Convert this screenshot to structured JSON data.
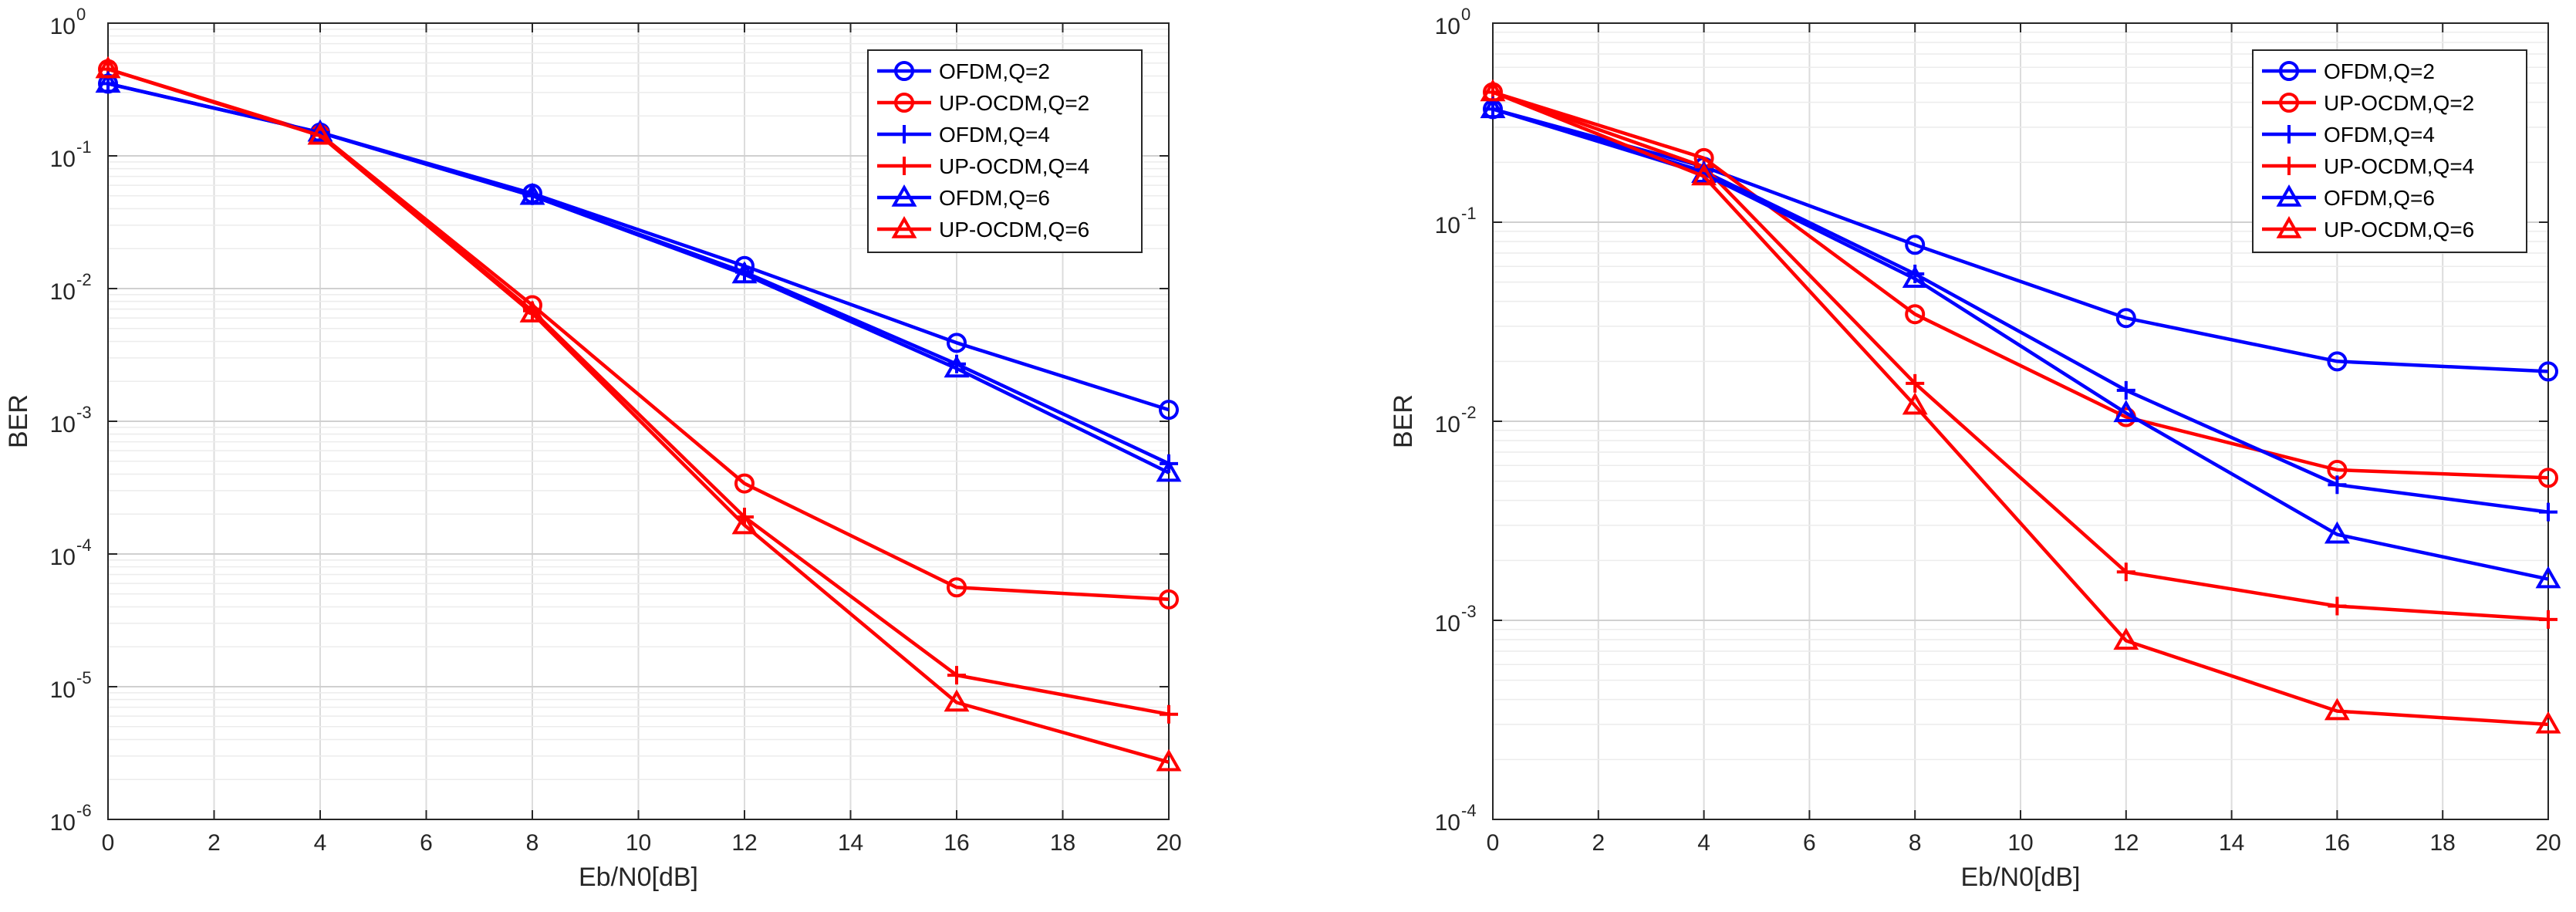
{
  "colors": {
    "ofdm": "#0000ff",
    "ocdm": "#ff0000"
  },
  "chart_data": [
    {
      "type": "line",
      "xscale": "linear",
      "yscale": "log",
      "xlabel": "Eb/N0[dB]",
      "ylabel": "BER",
      "xlim": [
        0,
        20
      ],
      "ylim_exp": [
        -6,
        0
      ],
      "xticks": [
        "0",
        "2",
        "4",
        "6",
        "8",
        "10",
        "12",
        "14",
        "16",
        "18",
        "20"
      ],
      "yticks": [
        {
          "base": "10",
          "exp": "-6"
        },
        {
          "base": "10",
          "exp": "-5"
        },
        {
          "base": "10",
          "exp": "-4"
        },
        {
          "base": "10",
          "exp": "-3"
        },
        {
          "base": "10",
          "exp": "-2"
        },
        {
          "base": "10",
          "exp": "-1"
        },
        {
          "base": "10",
          "exp": "0"
        }
      ],
      "grid": true,
      "legend_position": "top-right",
      "x": [
        0,
        4,
        8,
        12,
        16,
        20
      ],
      "series": [
        {
          "name": "OFDM,Q=2",
          "color": "blue",
          "marker": "circle",
          "values": [
            0.35,
            0.15,
            0.052,
            0.0148,
            0.0039,
            0.00122
          ]
        },
        {
          "name": "UP-OCDM,Q=2",
          "color": "red",
          "marker": "circle",
          "values": [
            0.45,
            0.145,
            0.0075,
            0.00034,
            5.6e-05,
            4.55e-05
          ]
        },
        {
          "name": "OFDM,Q=4",
          "color": "blue",
          "marker": "plus",
          "values": [
            0.35,
            0.15,
            0.05,
            0.0133,
            0.0027,
            0.00048
          ]
        },
        {
          "name": "UP-OCDM,Q=4",
          "color": "red",
          "marker": "plus",
          "values": [
            0.45,
            0.143,
            0.0068,
            0.00019,
            1.22e-05,
            6.2e-06
          ]
        },
        {
          "name": "OFDM,Q=6",
          "color": "blue",
          "marker": "triangle",
          "values": [
            0.35,
            0.15,
            0.05,
            0.0128,
            0.0025,
            0.00041
          ]
        },
        {
          "name": "UP-OCDM,Q=6",
          "color": "red",
          "marker": "triangle",
          "values": [
            0.45,
            0.142,
            0.0065,
            0.000165,
            7.6e-06,
            2.7e-06
          ]
        }
      ]
    },
    {
      "type": "line",
      "xscale": "linear",
      "yscale": "log",
      "xlabel": "Eb/N0[dB]",
      "ylabel": "BER",
      "xlim": [
        0,
        20
      ],
      "ylim_exp": [
        -4,
        0
      ],
      "xticks": [
        "0",
        "2",
        "4",
        "6",
        "8",
        "10",
        "12",
        "14",
        "16",
        "18",
        "20"
      ],
      "yticks": [
        {
          "base": "10",
          "exp": "-4"
        },
        {
          "base": "10",
          "exp": "-3"
        },
        {
          "base": "10",
          "exp": "-2"
        },
        {
          "base": "10",
          "exp": "-1"
        },
        {
          "base": "10",
          "exp": "0"
        }
      ],
      "grid": true,
      "legend_position": "top-right",
      "x": [
        0,
        4,
        8,
        12,
        16,
        20
      ],
      "series": [
        {
          "name": "OFDM,Q=2",
          "color": "blue",
          "marker": "circle",
          "values": [
            0.37,
            0.19,
            0.077,
            0.033,
            0.02,
            0.0178
          ]
        },
        {
          "name": "UP-OCDM,Q=2",
          "color": "red",
          "marker": "circle",
          "values": [
            0.45,
            0.21,
            0.0345,
            0.0105,
            0.0057,
            0.0052
          ]
        },
        {
          "name": "OFDM,Q=4",
          "color": "blue",
          "marker": "plus",
          "values": [
            0.37,
            0.18,
            0.055,
            0.0143,
            0.0048,
            0.0035
          ]
        },
        {
          "name": "UP-OCDM,Q=4",
          "color": "red",
          "marker": "plus",
          "values": [
            0.45,
            0.19,
            0.0155,
            0.00175,
            0.00118,
            0.00101
          ]
        },
        {
          "name": "OFDM,Q=6",
          "color": "blue",
          "marker": "triangle",
          "values": [
            0.37,
            0.175,
            0.052,
            0.011,
            0.0027,
            0.00161
          ]
        },
        {
          "name": "UP-OCDM,Q=6",
          "color": "red",
          "marker": "triangle",
          "values": [
            0.45,
            0.17,
            0.012,
            0.00079,
            0.00035,
            0.0003
          ]
        }
      ]
    }
  ]
}
